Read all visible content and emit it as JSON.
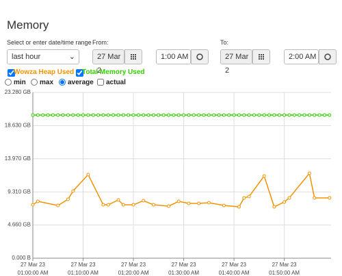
{
  "header": {
    "title": "Memory"
  },
  "range": {
    "label": "Select or enter date/time range",
    "selected": "last hour"
  },
  "from": {
    "label": "From:",
    "date": "27 Mar 2",
    "time": "1:00 AM"
  },
  "to": {
    "label": "To:",
    "date": "27 Mar 2",
    "time": "2:00 AM"
  },
  "options": {
    "items": [
      "min",
      "max",
      "average",
      "actual"
    ],
    "selected": "average"
  },
  "chart_data": {
    "type": "line",
    "series": [
      {
        "name": "Wowza Heap Used",
        "color": "#f39200",
        "checked": true,
        "x": [
          0,
          1,
          5,
          7,
          8,
          11,
          14,
          15,
          17,
          18,
          20,
          22,
          24,
          27,
          29,
          31,
          33,
          35,
          38,
          41,
          42,
          43,
          46,
          48,
          50,
          51,
          55,
          56,
          59
        ],
        "values": [
          7.5,
          7.98,
          7.41,
          8.27,
          9.43,
          11.74,
          7.5,
          7.5,
          8.18,
          7.5,
          7.5,
          8.08,
          7.5,
          7.31,
          7.98,
          7.7,
          7.7,
          7.79,
          7.41,
          7.21,
          8.47,
          8.66,
          11.54,
          7.21,
          7.89,
          8.47,
          11.93,
          8.47,
          8.47
        ]
      },
      {
        "name": "Total Memory Used",
        "color": "#33cc00",
        "checked": true,
        "x": [
          0,
          1,
          2,
          3,
          4,
          5,
          6,
          7,
          8,
          9,
          10,
          11,
          12,
          13,
          14,
          15,
          16,
          17,
          18,
          19,
          20,
          21,
          22,
          23,
          24,
          25,
          26,
          27,
          28,
          29,
          30,
          31,
          32,
          33,
          34,
          35,
          36,
          37,
          38,
          39,
          40,
          41,
          42,
          43,
          44,
          45,
          46,
          47,
          48,
          49,
          50,
          51,
          52,
          53,
          54,
          55,
          56,
          57,
          58,
          59
        ],
        "values": [
          20.1,
          20.1,
          20.1,
          20.1,
          20.1,
          20.1,
          20.1,
          20.1,
          20.1,
          20.1,
          20.1,
          20.1,
          20.1,
          20.1,
          20.1,
          20.1,
          20.1,
          20.1,
          20.1,
          20.1,
          20.1,
          20.1,
          20.1,
          20.1,
          20.1,
          20.1,
          20.1,
          20.1,
          20.1,
          20.1,
          20.1,
          20.1,
          20.1,
          20.1,
          20.1,
          20.1,
          20.1,
          20.1,
          20.1,
          20.1,
          20.1,
          20.1,
          20.1,
          20.1,
          20.1,
          20.1,
          20.1,
          20.1,
          20.1,
          20.1,
          20.1,
          20.1,
          20.1,
          20.1,
          20.1,
          20.1,
          20.1,
          20.1,
          20.1,
          20.1
        ]
      }
    ],
    "xlim": [
      0,
      59.3
    ],
    "xticks": [
      {
        "value": 0,
        "label": "27 Mar 23\n01:00:00 AM"
      },
      {
        "value": 10,
        "label": "27 Mar 23\n01:10:00 AM"
      },
      {
        "value": 20,
        "label": "27 Mar 23\n01:20:00 AM"
      },
      {
        "value": 30,
        "label": "27 Mar 23\n01:30:00 AM"
      },
      {
        "value": 40,
        "label": "27 Mar 23\n01:40:00 AM"
      },
      {
        "value": 50,
        "label": "27 Mar 23\n01:50:00 AM"
      }
    ],
    "ylim": [
      0,
      23.28
    ],
    "yticks": [
      {
        "value": 0,
        "label": "0.000 B"
      },
      {
        "value": 4.66,
        "label": "4.660 GB"
      },
      {
        "value": 9.31,
        "label": "9.310 GB"
      },
      {
        "value": 13.97,
        "label": "13.970 GB"
      },
      {
        "value": 18.63,
        "label": "18.630 GB"
      },
      {
        "value": 23.28,
        "label": "23.280 GB"
      }
    ],
    "grid": true
  }
}
